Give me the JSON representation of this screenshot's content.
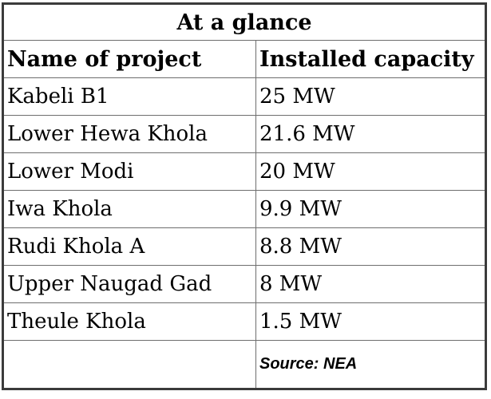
{
  "table": {
    "title": "At a glance",
    "columns": {
      "name": "Name of project",
      "capacity": "Installed capacity"
    },
    "rows": [
      {
        "name": "Kabeli B1",
        "capacity": "25 MW"
      },
      {
        "name": "Lower Hewa Khola",
        "capacity": "21.6 MW"
      },
      {
        "name": "Lower Modi",
        "capacity": "20 MW"
      },
      {
        "name": "Iwa Khola",
        "capacity": "9.9 MW"
      },
      {
        "name": "Rudi Khola A",
        "capacity": "8.8 MW"
      },
      {
        "name": "Upper Naugad Gad",
        "capacity": "8 MW"
      },
      {
        "name": "Theule Khola",
        "capacity": "1.5 MW"
      }
    ],
    "source": "Source: NEA"
  },
  "chart_data": {
    "type": "table",
    "title": "At a glance",
    "columns": [
      "Name of project",
      "Installed capacity"
    ],
    "rows": [
      [
        "Kabeli B1",
        "25 MW"
      ],
      [
        "Lower Hewa Khola",
        "21.6 MW"
      ],
      [
        "Lower Modi",
        "20 MW"
      ],
      [
        "Iwa Khola",
        "9.9 MW"
      ],
      [
        "Rudi Khola A",
        "8.8 MW"
      ],
      [
        "Upper Naugad Gad",
        "8 MW"
      ],
      [
        "Theule Khola",
        "1.5 MW"
      ]
    ],
    "values_mw": [
      25,
      21.6,
      20,
      9.9,
      8.8,
      8,
      1.5
    ],
    "unit": "MW",
    "source": "Source: NEA"
  },
  "colors": {
    "background": "#ffffff",
    "text": "#000000",
    "border_outer": "#3b3b3b",
    "border_inner": "#6e6e6e"
  }
}
